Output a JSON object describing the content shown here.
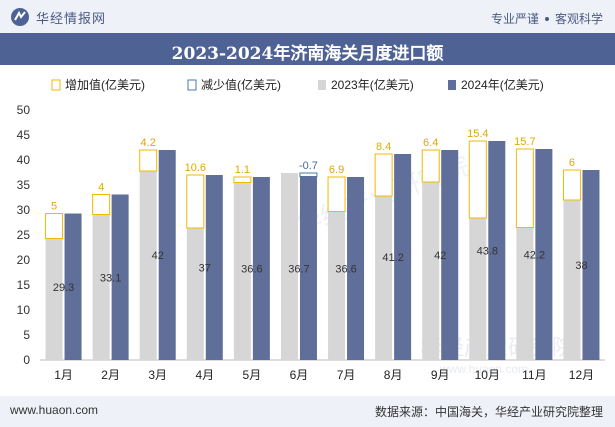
{
  "header": {
    "brand": "华经情报网",
    "slogan_left": "专业严谨",
    "slogan_right": "客观科学"
  },
  "chart_data": {
    "type": "bar",
    "title": "2023-2024年济南海关月度进口额",
    "categories": [
      "1月",
      "2月",
      "3月",
      "4月",
      "5月",
      "6月",
      "7月",
      "8月",
      "9月",
      "10月",
      "11月",
      "12月"
    ],
    "series": [
      {
        "name": "2023年(亿美元)",
        "values": [
          24.3,
          29.1,
          37.8,
          26.4,
          35.5,
          37.4,
          29.7,
          32.8,
          35.6,
          28.4,
          26.5,
          32.0
        ]
      },
      {
        "name": "2024年(亿美元)",
        "values": [
          29.3,
          33.1,
          42,
          37,
          36.6,
          36.7,
          36.6,
          41.2,
          42,
          43.8,
          42.2,
          38
        ]
      }
    ],
    "change": {
      "increase_name": "增加值(亿美元)",
      "decrease_name": "减少值(亿美元)",
      "values": [
        5,
        4,
        4.2,
        10.6,
        1.1,
        -0.7,
        6.9,
        8.4,
        6.4,
        15.4,
        15.7,
        6
      ]
    },
    "ylim": [
      0,
      50
    ],
    "yticks": [
      0,
      5,
      10,
      15,
      20,
      25,
      30,
      35,
      40,
      45,
      50
    ],
    "colors": {
      "y2023": "#d6d6d6",
      "y2024": "#5f6f99",
      "increase": "#f5b800",
      "decrease": "#4a7aa8",
      "increase_label": "#e0a800",
      "decrease_label": "#4a6a9a",
      "value_label": "#333333"
    },
    "watermark": "华经产业研究院",
    "watermark_url": "www.huaon.com"
  },
  "footer": {
    "url": "www.huaon.com",
    "source": "数据来源：中国海关，华经产业研究院整理"
  }
}
